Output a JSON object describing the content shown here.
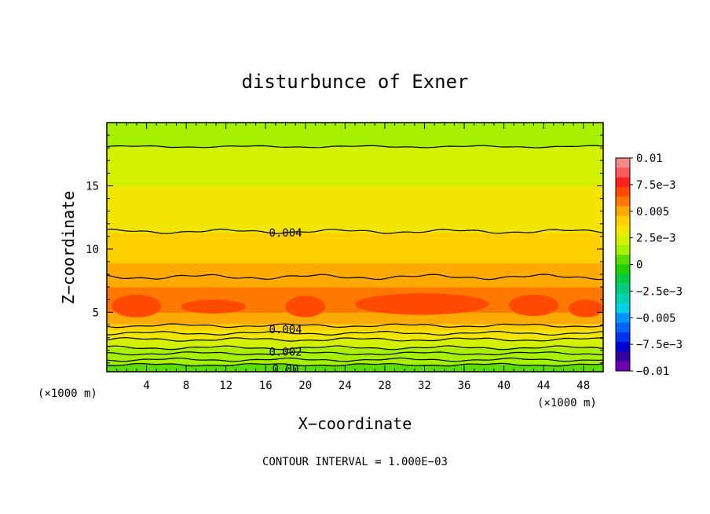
{
  "chart_data": {
    "type": "heatmap",
    "title": "disturbunce of Exner",
    "xlabel": "X−coordinate",
    "ylabel": "Z−coordinate",
    "x_unit_left": "(×1000 m)",
    "x_unit_right": "(×1000 m)",
    "note": "CONTOUR INTERVAL = 1.000E−03",
    "xlim": [
      0,
      50
    ],
    "ylim": [
      0.3,
      20
    ],
    "x_ticks": [
      4,
      8,
      12,
      16,
      20,
      24,
      28,
      32,
      36,
      40,
      44,
      48
    ],
    "y_ticks": [
      5,
      10,
      15
    ],
    "contour_interval": 0.001,
    "colorbar": {
      "labels": [
        "0.01",
        "7.5e−3",
        "0.005",
        "2.5e−3",
        "0",
        "−2.5e−3",
        "−0.005",
        "−7.5e−3",
        "−0.01"
      ],
      "range": [
        -0.01,
        0.01
      ],
      "colors_top_to_bottom": [
        "#f28a8a",
        "#ff5a5a",
        "#ff2020",
        "#ff4a00",
        "#ff7800",
        "#ffaa00",
        "#ffd000",
        "#f2e600",
        "#d2f000",
        "#a6f000",
        "#5adc00",
        "#1ed200",
        "#00cc44",
        "#00cc80",
        "#00d2b4",
        "#00d2e6",
        "#0096ff",
        "#0064ff",
        "#0032f0",
        "#0000d2",
        "#3200a0",
        "#6e00b4"
      ]
    },
    "contour_labels": [
      "0.004",
      "0.004",
      "0.002",
      "0.00"
    ],
    "profile_z": [
      0.3,
      0.9,
      1.5,
      2.2,
      2.9,
      3.6,
      4.1,
      5.0,
      6.0,
      7.0,
      7.9,
      8.9,
      10.0,
      11.3,
      13.0,
      15.0,
      18.1,
      20.0
    ],
    "profile_value": [
      0.0002,
      0.0007,
      0.0013,
      0.0019,
      0.0026,
      0.0033,
      0.0041,
      0.0056,
      0.0063,
      0.0056,
      0.005,
      0.0045,
      0.0043,
      0.0039,
      0.0033,
      0.0027,
      0.0019,
      0.0016
    ],
    "warm_cells": [
      {
        "x": [
          0.5,
          5.5
        ],
        "z": [
          4.6,
          6.4
        ]
      },
      {
        "x": [
          7.5,
          14.0
        ],
        "z": [
          4.9,
          6.0
        ]
      },
      {
        "x": [
          18.0,
          22.0
        ],
        "z": [
          4.6,
          6.3
        ]
      },
      {
        "x": [
          25.0,
          38.5
        ],
        "z": [
          4.8,
          6.5
        ]
      },
      {
        "x": [
          40.5,
          45.5
        ],
        "z": [
          4.7,
          6.4
        ]
      },
      {
        "x": [
          46.5,
          50.0
        ],
        "z": [
          4.6,
          6.0
        ]
      }
    ],
    "contour_lines": [
      {
        "value": 0.002,
        "z": 18.1,
        "amp": 0.06
      },
      {
        "value": 0.004,
        "z": 11.4,
        "amp": 0.12
      },
      {
        "value": 0.005,
        "z": 7.8,
        "amp": 0.14
      },
      {
        "value": 0.004,
        "z": 3.95,
        "amp": 0.1
      },
      {
        "value": 0.003,
        "z": 3.35,
        "amp": 0.1
      },
      {
        "value": 0.0025,
        "z": 2.85,
        "amp": 0.1
      },
      {
        "value": 0.002,
        "z": 2.2,
        "amp": 0.1
      },
      {
        "value": 0.0015,
        "z": 1.75,
        "amp": 0.09
      },
      {
        "value": 0.001,
        "z": 1.25,
        "amp": 0.09
      },
      {
        "value": 0.0005,
        "z": 0.85,
        "amp": 0.08
      }
    ]
  }
}
